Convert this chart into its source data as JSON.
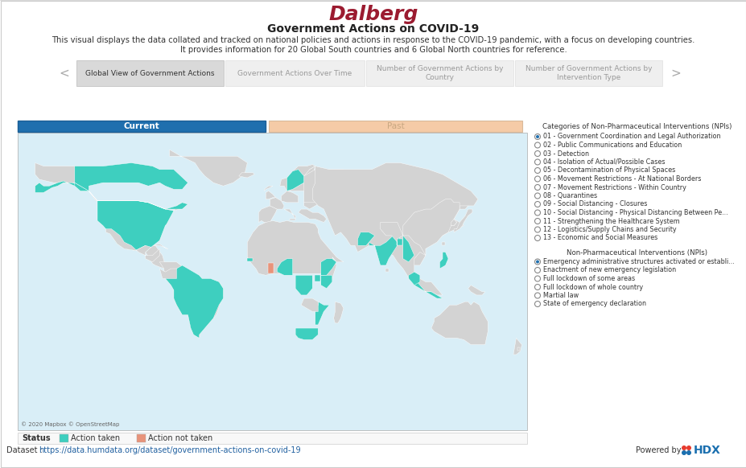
{
  "title_brand": "Dalberg",
  "title_brand_color": "#9B1B30",
  "title_main": "Government Actions on COVID-19",
  "subtitle_line1": "This visual displays the data collated and tracked on national policies and actions in response to the COVID-19 pandemic, with a focus on developing countries.",
  "subtitle_line2": "It provides information for 20 Global South countries and 6 Global North countries for reference.",
  "tabs": [
    "Global View of Government Actions",
    "Government Actions Over Time",
    "Number of Government Actions by\nCountry",
    "Number of Government Actions by\nIntervention Type"
  ],
  "active_tab": 0,
  "tab_active_color": "#d9d9d9",
  "tab_inactive_color": "#efefef",
  "current_label": "Current",
  "past_label": "Past",
  "current_color": "#1F6FAE",
  "past_color": "#F5CBA7",
  "current_text_color": "#ffffff",
  "past_text_color": "#c8a882",
  "bg_color": "#ffffff",
  "map_land_default": "#d3d3d3",
  "map_highlight": "#3ECFBF",
  "map_highlight2": "#E8937A",
  "legend_section1_title": "Categories of Non-Pharmaceutical Interventions (NPIs)",
  "legend_items1": [
    "01 - Government Coordination and Legal Authorization",
    "02 - Public Communications and Education",
    "03 - Detection",
    "04 - Isolation of Actual/Possible Cases",
    "05 - Decontamination of Physical Spaces",
    "06 - Movement Restrictions - At National Borders",
    "07 - Movement Restrictions - Within Country",
    "08 - Quarantines",
    "09 - Social Distancing - Closures",
    "10 - Social Distancing - Physical Distancing Between Pe...",
    "11 - Strengthening the Healthcare System",
    "12 - Logistics/Supply Chains and Security",
    "13 - Economic and Social Measures"
  ],
  "legend_section2_title": "Non-Pharmaceutical Interventions (NPIs)",
  "legend_items2": [
    "Emergency administrative structures activated or establi...",
    "Enactment of new emergency legislation",
    "Full lockdown of some areas",
    "Full lockdown of whole country",
    "Martial law",
    "State of emergency declaration"
  ],
  "legend_selected1": 0,
  "legend_selected2": 0,
  "status_label": "Status",
  "status_action_taken": "Action taken",
  "status_action_not_taken": "Action not taken",
  "status_action_taken_color": "#3ECFBF",
  "status_action_not_taken_color": "#E8937A",
  "copyright_text": "© 2020 Mapbox © OpenStreetMap",
  "dataset_label": "Dataset : ",
  "dataset_url": "https://data.humdata.org/dataset/government-actions-on-covid-19",
  "powered_by": "Powered by",
  "map_ocean_color": "#d9eef7",
  "map_border_color": "#aaaaaa",
  "map_land_edge": "#ffffff",
  "radio_outer_color": "#888888",
  "radio_inner_color": "#1F6FAE"
}
